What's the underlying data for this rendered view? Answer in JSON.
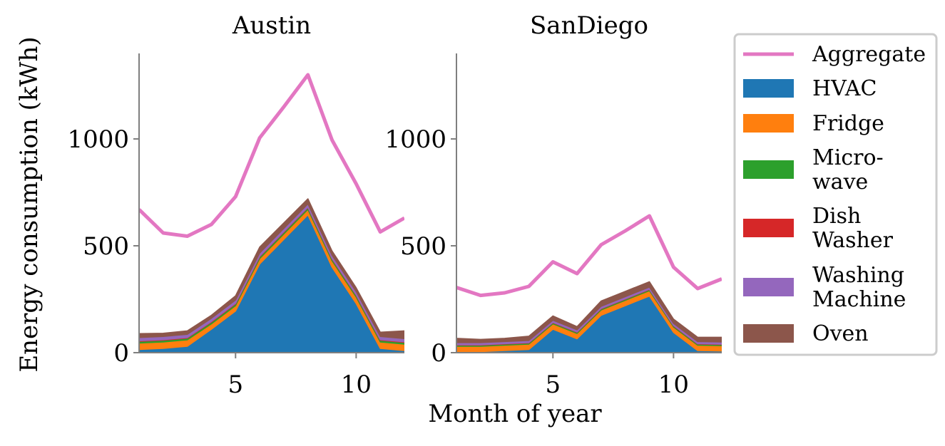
{
  "ylabel": "Energy consumption (kWh)",
  "xlabel": "Month of year",
  "colors": {
    "Aggregate": "#e377c2",
    "HVAC": "#1f77b4",
    "Fridge": "#ff7f0e",
    "Microwave": "#2ca02c",
    "DishWasher": "#d62728",
    "WashingMachine": "#9467bd",
    "Oven": "#8c564b"
  },
  "legend": {
    "placement": "right-outside",
    "entries": [
      {
        "key": "Aggregate",
        "lines": [
          "Aggregate"
        ],
        "kind": "line"
      },
      {
        "key": "HVAC",
        "lines": [
          "HVAC"
        ],
        "kind": "patch"
      },
      {
        "key": "Fridge",
        "lines": [
          "Fridge"
        ],
        "kind": "patch"
      },
      {
        "key": "Microwave",
        "lines": [
          "Micro-",
          "wave"
        ],
        "kind": "patch"
      },
      {
        "key": "DishWasher",
        "lines": [
          "Dish",
          "Washer"
        ],
        "kind": "patch"
      },
      {
        "key": "WashingMachine",
        "lines": [
          "Washing",
          "Machine"
        ],
        "kind": "patch"
      },
      {
        "key": "Oven",
        "lines": [
          "Oven"
        ],
        "kind": "patch"
      }
    ]
  },
  "chart_data": [
    {
      "type": "area",
      "title": "Austin",
      "x": [
        1,
        2,
        3,
        4,
        5,
        6,
        7,
        8,
        9,
        10,
        11,
        12
      ],
      "xlim": [
        1,
        12
      ],
      "ylim": [
        0,
        1400
      ],
      "xticks": [
        5,
        10
      ],
      "yticks": [
        0,
        500,
        1000
      ],
      "stacked": true,
      "grid": false,
      "series": [
        {
          "key": "HVAC",
          "values": [
            15,
            20,
            30,
            110,
            195,
            415,
            530,
            645,
            400,
            230,
            20,
            10
          ]
        },
        {
          "key": "Fridge",
          "values": [
            30,
            30,
            30,
            25,
            25,
            25,
            25,
            25,
            30,
            30,
            30,
            30
          ]
        },
        {
          "key": "Microwave",
          "values": [
            8,
            8,
            8,
            8,
            8,
            8,
            8,
            8,
            8,
            8,
            8,
            8
          ]
        },
        {
          "key": "DishWasher",
          "values": [
            3,
            3,
            3,
            3,
            3,
            3,
            3,
            3,
            3,
            3,
            3,
            3
          ]
        },
        {
          "key": "WashingMachine",
          "values": [
            15,
            15,
            15,
            15,
            15,
            15,
            15,
            15,
            15,
            15,
            15,
            15
          ]
        },
        {
          "key": "Oven",
          "values": [
            18,
            15,
            16,
            14,
            20,
            28,
            26,
            24,
            20,
            18,
            20,
            36
          ]
        },
        {
          "key": "Aggregate",
          "kind": "line",
          "values": [
            670,
            560,
            545,
            600,
            730,
            1005,
            1150,
            1300,
            995,
            790,
            565,
            630
          ]
        }
      ]
    },
    {
      "type": "area",
      "title": "SanDiego",
      "x": [
        1,
        2,
        3,
        4,
        5,
        6,
        7,
        8,
        9,
        10,
        11,
        12
      ],
      "xlim": [
        1,
        12
      ],
      "ylim": [
        0,
        1400
      ],
      "xticks": [
        5,
        10
      ],
      "yticks": [
        0,
        500,
        1000
      ],
      "stacked": true,
      "grid": false,
      "series": [
        {
          "key": "HVAC",
          "values": [
            5,
            5,
            10,
            15,
            110,
            65,
            175,
            220,
            265,
            95,
            10,
            8
          ]
        },
        {
          "key": "Fridge",
          "values": [
            25,
            25,
            25,
            25,
            25,
            25,
            25,
            25,
            25,
            25,
            25,
            25
          ]
        },
        {
          "key": "Microwave",
          "values": [
            5,
            5,
            5,
            5,
            5,
            5,
            5,
            5,
            5,
            5,
            5,
            5
          ]
        },
        {
          "key": "DishWasher",
          "values": [
            2,
            2,
            2,
            2,
            2,
            2,
            2,
            2,
            2,
            2,
            2,
            2
          ]
        },
        {
          "key": "WashingMachine",
          "values": [
            10,
            10,
            10,
            10,
            10,
            10,
            10,
            10,
            10,
            10,
            10,
            10
          ]
        },
        {
          "key": "Oven",
          "values": [
            20,
            15,
            15,
            20,
            20,
            15,
            25,
            25,
            25,
            20,
            20,
            22
          ]
        },
        {
          "key": "Aggregate",
          "kind": "line",
          "values": [
            305,
            268,
            280,
            310,
            425,
            370,
            505,
            570,
            640,
            400,
            300,
            345
          ]
        }
      ]
    }
  ]
}
